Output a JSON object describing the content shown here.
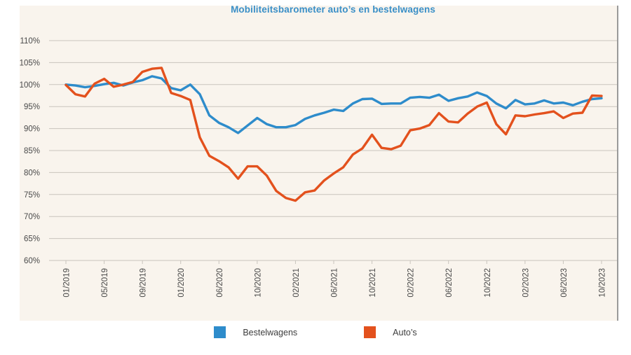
{
  "chart_data": {
    "type": "line",
    "title": "Mobiliteitsbarometer auto’s en bestelwagens",
    "unit": "%",
    "grid": true,
    "legend_position": "bottom",
    "y_axis": {
      "min": 60,
      "max": 110,
      "step": 5,
      "tick_suffix": "%"
    },
    "x_tick_labels": [
      "01/2019",
      "05/2019",
      "09/2019",
      "01/2020",
      "06/2020",
      "10/2020",
      "02/2021",
      "06/2021",
      "10/2021",
      "02/2022",
      "06/2022",
      "10/2022",
      "02/2023",
      "06/2023",
      "10/2023"
    ],
    "months": [
      "01/2019",
      "02/2019",
      "03/2019",
      "04/2019",
      "05/2019",
      "06/2019",
      "07/2019",
      "08/2019",
      "09/2019",
      "10/2019",
      "11/2019",
      "12/2019",
      "01/2020",
      "02/2020",
      "03/2020",
      "05/2020",
      "06/2020",
      "07/2020",
      "08/2020",
      "09/2020",
      "10/2020",
      "11/2020",
      "12/2020",
      "01/2021",
      "02/2021",
      "03/2021",
      "04/2021",
      "05/2021",
      "06/2021",
      "07/2021",
      "08/2021",
      "09/2021",
      "10/2021",
      "11/2021",
      "12/2021",
      "01/2022",
      "02/2022",
      "03/2022",
      "04/2022",
      "05/2022",
      "06/2022",
      "07/2022",
      "08/2022",
      "09/2022",
      "10/2022",
      "11/2022",
      "12/2022",
      "01/2023",
      "02/2023",
      "03/2023",
      "04/2023",
      "05/2023",
      "06/2023",
      "07/2023",
      "08/2023",
      "09/2023",
      "10/2023"
    ],
    "series": [
      {
        "name": "Bestelwagens",
        "color": "#2e8ccb",
        "values": [
          100.0,
          99.8,
          99.4,
          99.7,
          100.1,
          100.4,
          99.8,
          100.5,
          101.0,
          101.9,
          101.4,
          99.2,
          98.7,
          100.0,
          97.8,
          93.0,
          91.3,
          90.3,
          89.0,
          90.7,
          92.4,
          91.0,
          90.3,
          90.3,
          90.8,
          92.2,
          93.0,
          93.6,
          94.3,
          94.0,
          95.7,
          96.7,
          96.8,
          95.6,
          95.7,
          95.7,
          97.0,
          97.2,
          97.0,
          97.7,
          96.3,
          96.9,
          97.3,
          98.2,
          97.4,
          95.7,
          94.6,
          96.5,
          95.5,
          95.7,
          96.4,
          95.7,
          95.9,
          95.3,
          96.1,
          96.7,
          96.9
        ]
      },
      {
        "name": "Auto’s",
        "color": "#e3511d",
        "values": [
          99.9,
          97.8,
          97.3,
          100.2,
          101.3,
          99.5,
          100.0,
          100.6,
          102.9,
          103.6,
          103.8,
          98.1,
          97.4,
          96.5,
          88.0,
          83.8,
          82.6,
          81.2,
          78.6,
          81.4,
          81.4,
          79.3,
          75.8,
          74.2,
          73.6,
          75.5,
          75.9,
          78.2,
          79.8,
          81.2,
          84.1,
          85.5,
          88.6,
          85.6,
          85.3,
          86.1,
          89.6,
          90.0,
          90.8,
          93.5,
          91.6,
          91.4,
          93.4,
          95.0,
          95.9,
          91.0,
          88.7,
          93.0,
          92.8,
          93.2,
          93.5,
          93.9,
          92.4,
          93.4,
          93.6,
          97.5,
          97.4
        ]
      }
    ],
    "colors": {
      "panel_background": "#f9f4ed",
      "gridline": "#c9c4bd",
      "title": "#3a8fc7",
      "axis_text": "#4a4a4a",
      "right_border": "#9a9a9a"
    }
  }
}
